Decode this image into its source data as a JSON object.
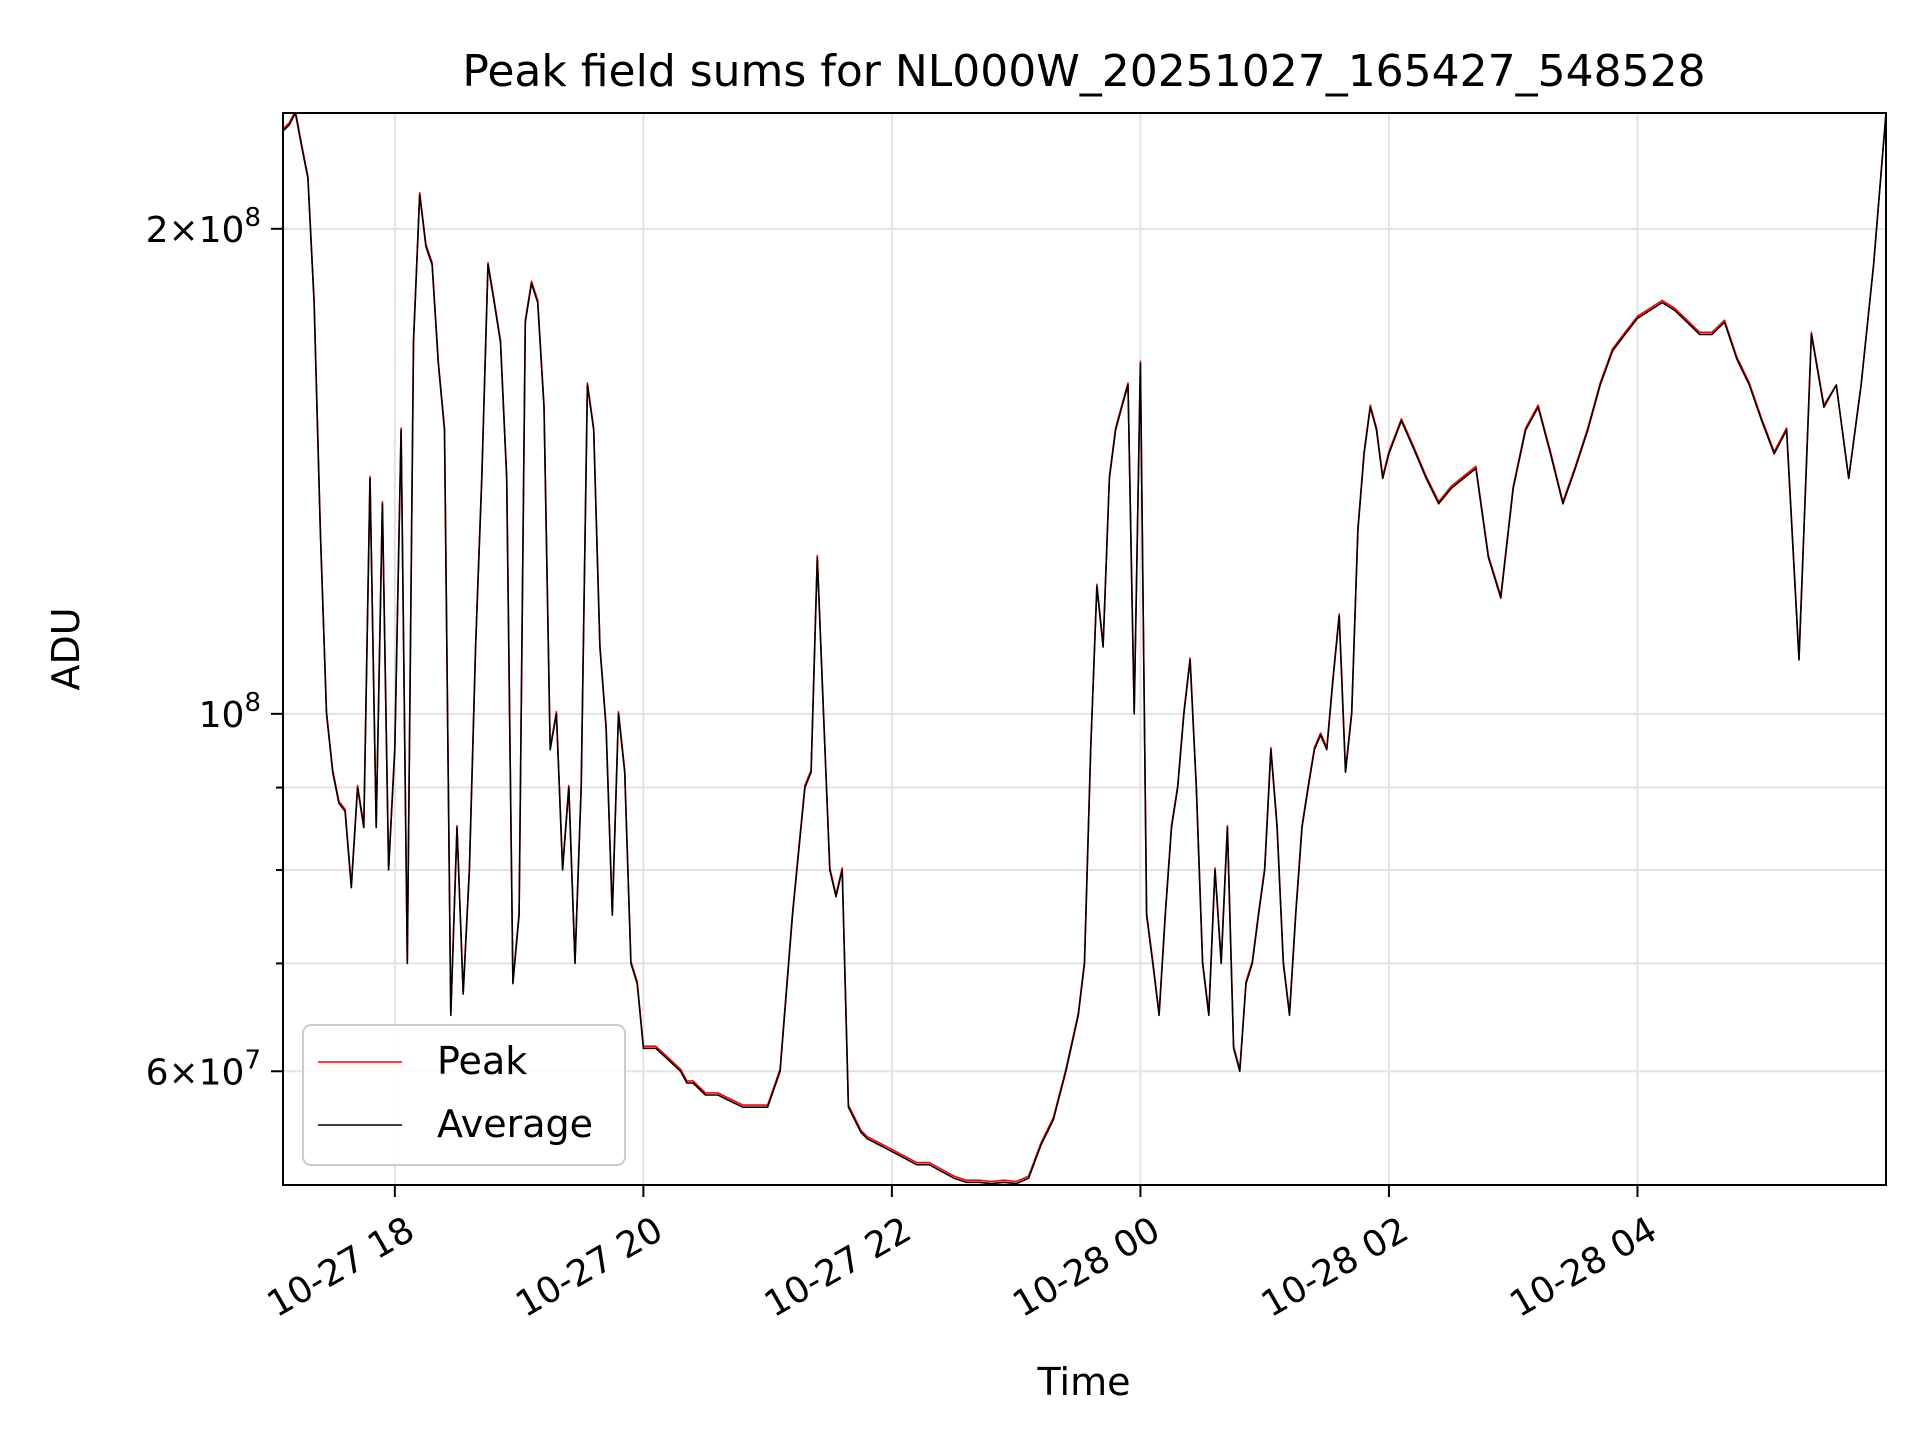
{
  "chart_data": {
    "type": "line",
    "title": "Peak field sums for NL000W_20251027_165427_548528",
    "xlabel": "Time",
    "ylabel": "ADU",
    "yscale": "log",
    "xlim_hours": [
      17.1,
      30.0
    ],
    "ylim": [
      51000000,
      236000000
    ],
    "x_unit": "hours since 2025-10-27 00:00",
    "x_ticks": [
      {
        "value": 18,
        "label": "10-27 18"
      },
      {
        "value": 20,
        "label": "10-27 20"
      },
      {
        "value": 22,
        "label": "10-27 22"
      },
      {
        "value": 24,
        "label": "10-28 00"
      },
      {
        "value": 26,
        "label": "10-28 02"
      },
      {
        "value": 28,
        "label": "10-28 04"
      }
    ],
    "y_ticks": [
      {
        "value": 60000000,
        "mantissa": "6",
        "exponent": "7"
      },
      {
        "value": 100000000,
        "mantissa": "",
        "exponent": "8"
      },
      {
        "value": 200000000,
        "mantissa": "2",
        "exponent": "8"
      }
    ],
    "y_minor_ticks": [
      50000000,
      70000000,
      80000000,
      90000000
    ],
    "grid": true,
    "legend_position": "lower-left",
    "series": [
      {
        "name": "Peak",
        "color": "#ff0000",
        "x": [
          17.1,
          17.15,
          17.2,
          17.25,
          17.3,
          17.35,
          17.4,
          17.45,
          17.5,
          17.55,
          17.6,
          17.65,
          17.7,
          17.75,
          17.8,
          17.85,
          17.9,
          17.95,
          18.0,
          18.05,
          18.1,
          18.15,
          18.2,
          18.25,
          18.3,
          18.35,
          18.4,
          18.45,
          18.5,
          18.55,
          18.6,
          18.65,
          18.7,
          18.75,
          18.8,
          18.85,
          18.9,
          18.95,
          19.0,
          19.05,
          19.1,
          19.15,
          19.2,
          19.25,
          19.3,
          19.35,
          19.4,
          19.45,
          19.5,
          19.55,
          19.6,
          19.65,
          19.7,
          19.75,
          19.8,
          19.85,
          19.9,
          19.95,
          20.0,
          20.05,
          20.1,
          20.15,
          20.2,
          20.25,
          20.3,
          20.35,
          20.4,
          20.45,
          20.5,
          20.55,
          20.6,
          20.7,
          20.8,
          20.9,
          21.0,
          21.1,
          21.2,
          21.3,
          21.35,
          21.4,
          21.45,
          21.5,
          21.55,
          21.6,
          21.65,
          21.7,
          21.75,
          21.8,
          21.9,
          22.0,
          22.1,
          22.2,
          22.3,
          22.4,
          22.5,
          22.6,
          22.7,
          22.8,
          22.9,
          23.0,
          23.1,
          23.2,
          23.3,
          23.4,
          23.5,
          23.55,
          23.6,
          23.65,
          23.7,
          23.75,
          23.8,
          23.85,
          23.9,
          23.95,
          24.0,
          24.05,
          24.1,
          24.15,
          24.2,
          24.25,
          24.3,
          24.35,
          24.4,
          24.45,
          24.5,
          24.55,
          24.6,
          24.65,
          24.7,
          24.75,
          24.8,
          24.85,
          24.9,
          24.95,
          25.0,
          25.05,
          25.1,
          25.15,
          25.2,
          25.25,
          25.3,
          25.35,
          25.4,
          25.45,
          25.5,
          25.55,
          25.6,
          25.65,
          25.7,
          25.75,
          25.8,
          25.85,
          25.9,
          25.95,
          26.0,
          26.1,
          26.2,
          26.3,
          26.4,
          26.5,
          26.6,
          26.7,
          26.8,
          26.9,
          27.0,
          27.1,
          27.2,
          27.3,
          27.4,
          27.5,
          27.6,
          27.7,
          27.8,
          27.9,
          28.0,
          28.1,
          28.2,
          28.3,
          28.4,
          28.5,
          28.6,
          28.7,
          28.8,
          28.9,
          29.0,
          29.1,
          29.2,
          29.3,
          29.4,
          29.5,
          29.6,
          29.7,
          29.8,
          29.9,
          30.0
        ],
        "values": [
          230,
          232,
          236,
          225,
          215,
          180,
          130,
          100,
          92,
          88,
          87,
          78,
          90,
          85,
          140,
          85,
          135,
          80,
          95,
          150,
          70,
          170,
          210,
          195,
          190,
          165,
          150,
          65,
          85,
          67,
          80,
          110,
          140,
          190,
          180,
          170,
          140,
          68,
          75,
          175,
          185,
          180,
          155,
          95,
          100,
          80,
          90,
          70,
          90,
          160,
          150,
          110,
          98,
          75,
          100,
          92,
          70,
          68,
          62,
          62,
          62,
          61.5,
          61,
          60.5,
          60,
          59,
          59,
          58.5,
          58,
          58,
          58,
          57.5,
          57,
          57,
          57,
          60,
          75,
          90,
          92,
          125,
          100,
          80,
          77,
          80,
          57,
          56,
          55,
          54.5,
          54,
          53.5,
          53,
          52.5,
          52.5,
          52,
          51.5,
          51.2,
          51.2,
          51.1,
          51.2,
          51.1,
          51.5,
          54,
          56,
          60,
          65,
          70,
          95,
          120,
          110,
          140,
          150,
          155,
          160,
          100,
          165,
          75,
          70,
          65,
          75,
          85,
          90,
          100,
          108,
          90,
          70,
          65,
          80,
          70,
          85,
          62,
          60,
          68,
          70,
          75,
          80,
          95,
          85,
          70,
          65,
          75,
          85,
          90,
          95,
          97,
          95,
          105,
          115,
          92,
          100,
          130,
          145,
          155,
          150,
          140,
          145,
          152,
          146,
          140,
          135,
          138,
          140,
          142,
          125,
          118,
          138,
          150,
          155,
          145,
          135,
          142,
          150,
          160,
          168,
          172,
          176,
          178,
          180,
          178,
          175,
          172,
          172,
          175,
          166,
          160,
          152,
          145,
          150,
          108,
          172,
          155,
          160,
          140,
          160,
          190,
          236
        ],
        "peak_offset_pct": [
          0.3,
          0.3,
          0.3,
          0.3,
          0.3,
          0.3,
          0.3,
          0.3,
          0.3,
          0.3,
          0.3,
          0.3,
          0.3,
          0.3,
          0.3,
          0.3,
          0.3,
          0.3,
          0.3,
          0.3,
          0.3,
          0.3,
          0.3,
          0.3,
          0.3,
          0.3,
          0.3,
          0.3,
          0.3,
          0.3,
          0.3,
          0.3,
          0.3,
          0.3,
          0.3,
          0.3,
          0.3,
          0.3,
          0.3,
          0.3,
          0.3,
          0.3,
          0.3,
          0.3,
          0.3,
          0.3,
          0.3,
          0.3,
          0.3,
          0.3,
          0.3,
          0.3,
          0.3,
          0.3,
          0.3,
          0.3,
          0.3,
          0.3,
          0.3,
          0.3,
          0.3,
          0.3,
          0.3,
          0.3,
          0.3,
          0.3,
          0.3,
          0.3,
          0.3,
          0.3,
          0.3,
          0.3,
          0.3,
          0.3,
          0.3,
          0.3,
          0.3,
          0.3,
          0.3,
          0.3,
          0.3,
          0.3,
          0.3,
          0.3,
          0.3,
          0.3,
          0.3,
          0.3,
          0.3,
          0.3,
          0.3,
          0.3,
          0.3,
          0.3,
          0.3,
          0.3,
          0.3,
          0.3,
          0.3,
          0.3,
          0.3,
          0.3,
          0.3,
          0.3,
          0.3,
          0.3,
          0.3,
          0.3,
          0.3,
          0.3,
          0.3,
          0.3,
          0.3,
          0.3,
          0.3,
          0.3,
          0.3,
          0.3,
          0.3,
          0.3,
          0.3,
          0.3,
          0.3,
          0.3,
          0.3,
          0.3,
          0.3,
          0.3,
          0.3,
          0.3,
          0.3,
          0.3,
          0.3,
          0.3,
          0.3,
          0.3,
          0.3,
          0.3,
          0.3,
          0.3,
          0.3,
          0.3,
          0.3,
          0.3,
          0.3,
          0.3,
          0.3,
          0.3,
          0.3,
          0.3,
          0.3,
          0.3,
          0.3,
          0.3,
          0.3,
          0.3,
          0.3,
          0.3,
          0.3,
          0.3,
          0.3,
          0.3,
          0.3,
          0.3,
          0.3,
          0.3,
          0.3,
          0.3,
          0.3,
          0.3,
          0.3,
          0.3,
          0.3,
          0.3,
          0.3,
          0.3,
          0.3,
          0.3,
          0.3,
          0.3,
          0.3,
          0.3,
          0.3,
          0.3,
          0.3,
          0.3,
          0.3,
          0.3,
          0.3,
          0.3
        ]
      },
      {
        "name": "Average",
        "color": "#000000",
        "x_same_as": "Peak",
        "value_unit": "millions ADU"
      }
    ]
  }
}
